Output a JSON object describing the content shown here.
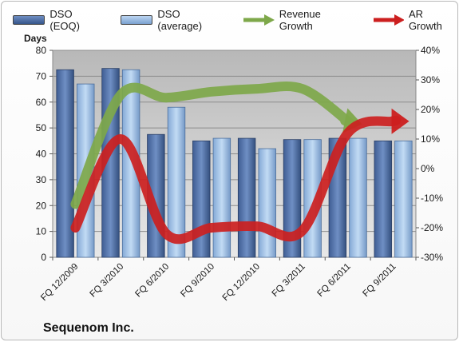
{
  "chart_data": {
    "type": "bar",
    "title": "",
    "company": "Sequenom Inc.",
    "ylabel": "Days",
    "ylim": [
      0,
      80
    ],
    "y_ticks": [
      "0",
      "10",
      "20",
      "30",
      "40",
      "50",
      "60",
      "70",
      "80"
    ],
    "y2lim": [
      -30,
      40
    ],
    "y2_ticks": [
      "-30%",
      "-20%",
      "-10%",
      "0%",
      "10%",
      "20%",
      "30%",
      "40%"
    ],
    "categories": [
      "FQ 12/2009",
      "FQ 3/2010",
      "FQ 6/2010",
      "FQ 9/2010",
      "FQ 12/2010",
      "FQ 3/2011",
      "FQ 6/2011",
      "FQ 9/2011"
    ],
    "series": [
      {
        "name": "DSO (EOQ)",
        "type": "bar",
        "axis": "left",
        "color": "#4a6aa3",
        "values": [
          72.5,
          73,
          47.5,
          45,
          46,
          45.5,
          46,
          45
        ]
      },
      {
        "name": "DSO (average)",
        "type": "bar",
        "axis": "left",
        "color": "#8fb4df",
        "values": [
          67,
          72.5,
          58,
          46,
          42,
          45.5,
          46,
          45
        ]
      },
      {
        "name": "Revenue Growth",
        "type": "arrow-line",
        "axis": "right",
        "color": "#7ea84a",
        "values": [
          -12,
          25,
          24,
          26,
          27,
          27,
          16,
          null
        ]
      },
      {
        "name": "AR Growth",
        "type": "arrow-line",
        "axis": "right",
        "color": "#cc1f1f",
        "values": [
          -20,
          10,
          -22,
          -20,
          -19.5,
          -21,
          12,
          16
        ]
      }
    ],
    "grid": true,
    "legend_position": "top"
  }
}
